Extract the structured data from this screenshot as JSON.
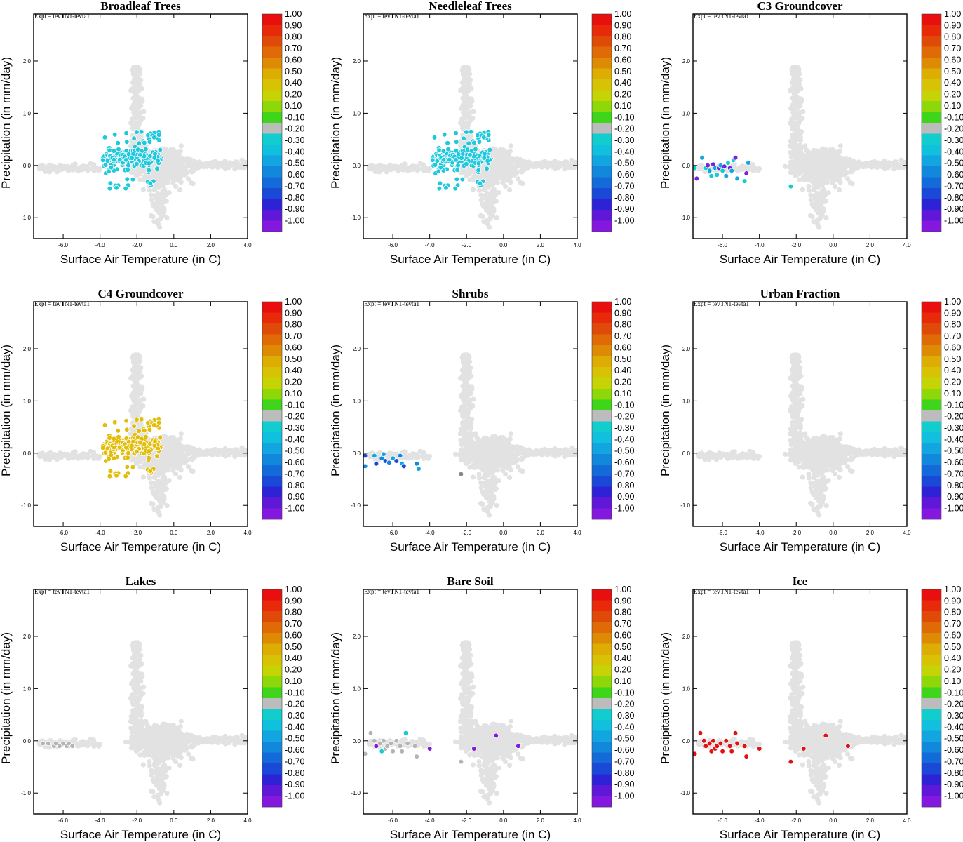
{
  "figure": {
    "expt_label": "Expt = tevTN1-tevta1",
    "xlabel": "Surface Air Temperature (in C)",
    "ylabel": "Precipitation (in mm/day)",
    "xlim": [
      -7.6,
      4.0
    ],
    "ylim": [
      -1.4,
      2.9
    ],
    "x_ticks": [
      "-6.0",
      "-4.0",
      "-2.0",
      "0.0",
      "2.0",
      "4.0"
    ],
    "x_tick_values": [
      -6,
      -4,
      -2,
      0,
      2,
      4
    ],
    "y_ticks": [
      "-1.0",
      "0.0",
      "1.0",
      "2.0"
    ],
    "y_tick_values": [
      -1,
      0,
      1,
      2
    ],
    "background_point_color": "#e2e2e2",
    "colorbar": {
      "labels": [
        "1.00",
        "0.90",
        "0.80",
        "0.70",
        "0.60",
        "0.50",
        "0.40",
        "0.20",
        "0.10",
        "-0.10",
        "-0.20",
        "-0.30",
        "-0.40",
        "-0.50",
        "-0.60",
        "-0.70",
        "-0.80",
        "-0.90",
        "-1.00"
      ],
      "colors": [
        "#e80f0f",
        "#e82a0a",
        "#e04a08",
        "#e06a06",
        "#dd8a05",
        "#ddad04",
        "#d8c205",
        "#c6d405",
        "#8ed80a",
        "#3ed51a",
        "#bcbcbc",
        "#12cdcd",
        "#10c0dd",
        "#11a6e0",
        "#1288dd",
        "#146ad8",
        "#1a49d8",
        "#2e22d6",
        "#5f18d8",
        "#8418de"
      ]
    }
  },
  "chart_data": [
    {
      "type": "scatter",
      "title": "Broadleaf Trees",
      "highlight": "cluster_forest",
      "color": "#1ec8dd",
      "series": [
        {
          "name": "Broadleaf Trees",
          "region": "x -3.9 to -0.6, y -0.45 to 0.65"
        }
      ]
    },
    {
      "type": "scatter",
      "title": "Needleleaf Trees",
      "highlight": "cluster_forest",
      "color": "#1ec8dd",
      "series": [
        {
          "name": "Needleleaf Trees",
          "region": "x -3.9 to -0.6, y -0.45 to 0.65"
        }
      ]
    },
    {
      "type": "scatter",
      "title": "C3 Groundcover",
      "highlight": "cluster_c3",
      "color": "#7a1fdf",
      "series": [
        {
          "name": "C3 Groundcover",
          "region": "x -7.5 to -4.4, y -0.3 to 0.15"
        }
      ]
    },
    {
      "type": "scatter",
      "title": "C4 Groundcover",
      "highlight": "cluster_forest",
      "color": "#e2bd0a",
      "series": [
        {
          "name": "C4 Groundcover",
          "region": "x -3.9 to -0.6, y -0.45 to 0.65"
        }
      ]
    },
    {
      "type": "scatter",
      "title": "Shrubs",
      "highlight": "cluster_shrubs",
      "color": "#1f78dc",
      "series": [
        {
          "name": "Shrubs",
          "region": "x -7.5 to -4.6, y -0.3 to 0.0"
        }
      ]
    },
    {
      "type": "scatter",
      "title": "Urban Fraction",
      "highlight": "none",
      "color": "#bcbcbc",
      "series": []
    },
    {
      "type": "scatter",
      "title": "Lakes",
      "highlight": "cluster_lakes",
      "color": "#b4b4b4",
      "series": [
        {
          "name": "Lakes",
          "region": "x -7.1 to -5.4, y -0.15 to 0.0"
        }
      ]
    },
    {
      "type": "scatter",
      "title": "Bare Soil",
      "highlight": "cluster_baresoil",
      "color": "#b4b4b4",
      "series": [
        {
          "name": "Bare Soil",
          "region": "x -7.6 to 0.8, y -0.4 to 0.2"
        }
      ]
    },
    {
      "type": "scatter",
      "title": "Ice",
      "highlight": "cluster_ice",
      "color": "#e01212",
      "series": [
        {
          "name": "Ice",
          "region": "x -7.6 to 0.8, y -0.4 to 0.2"
        }
      ]
    }
  ]
}
